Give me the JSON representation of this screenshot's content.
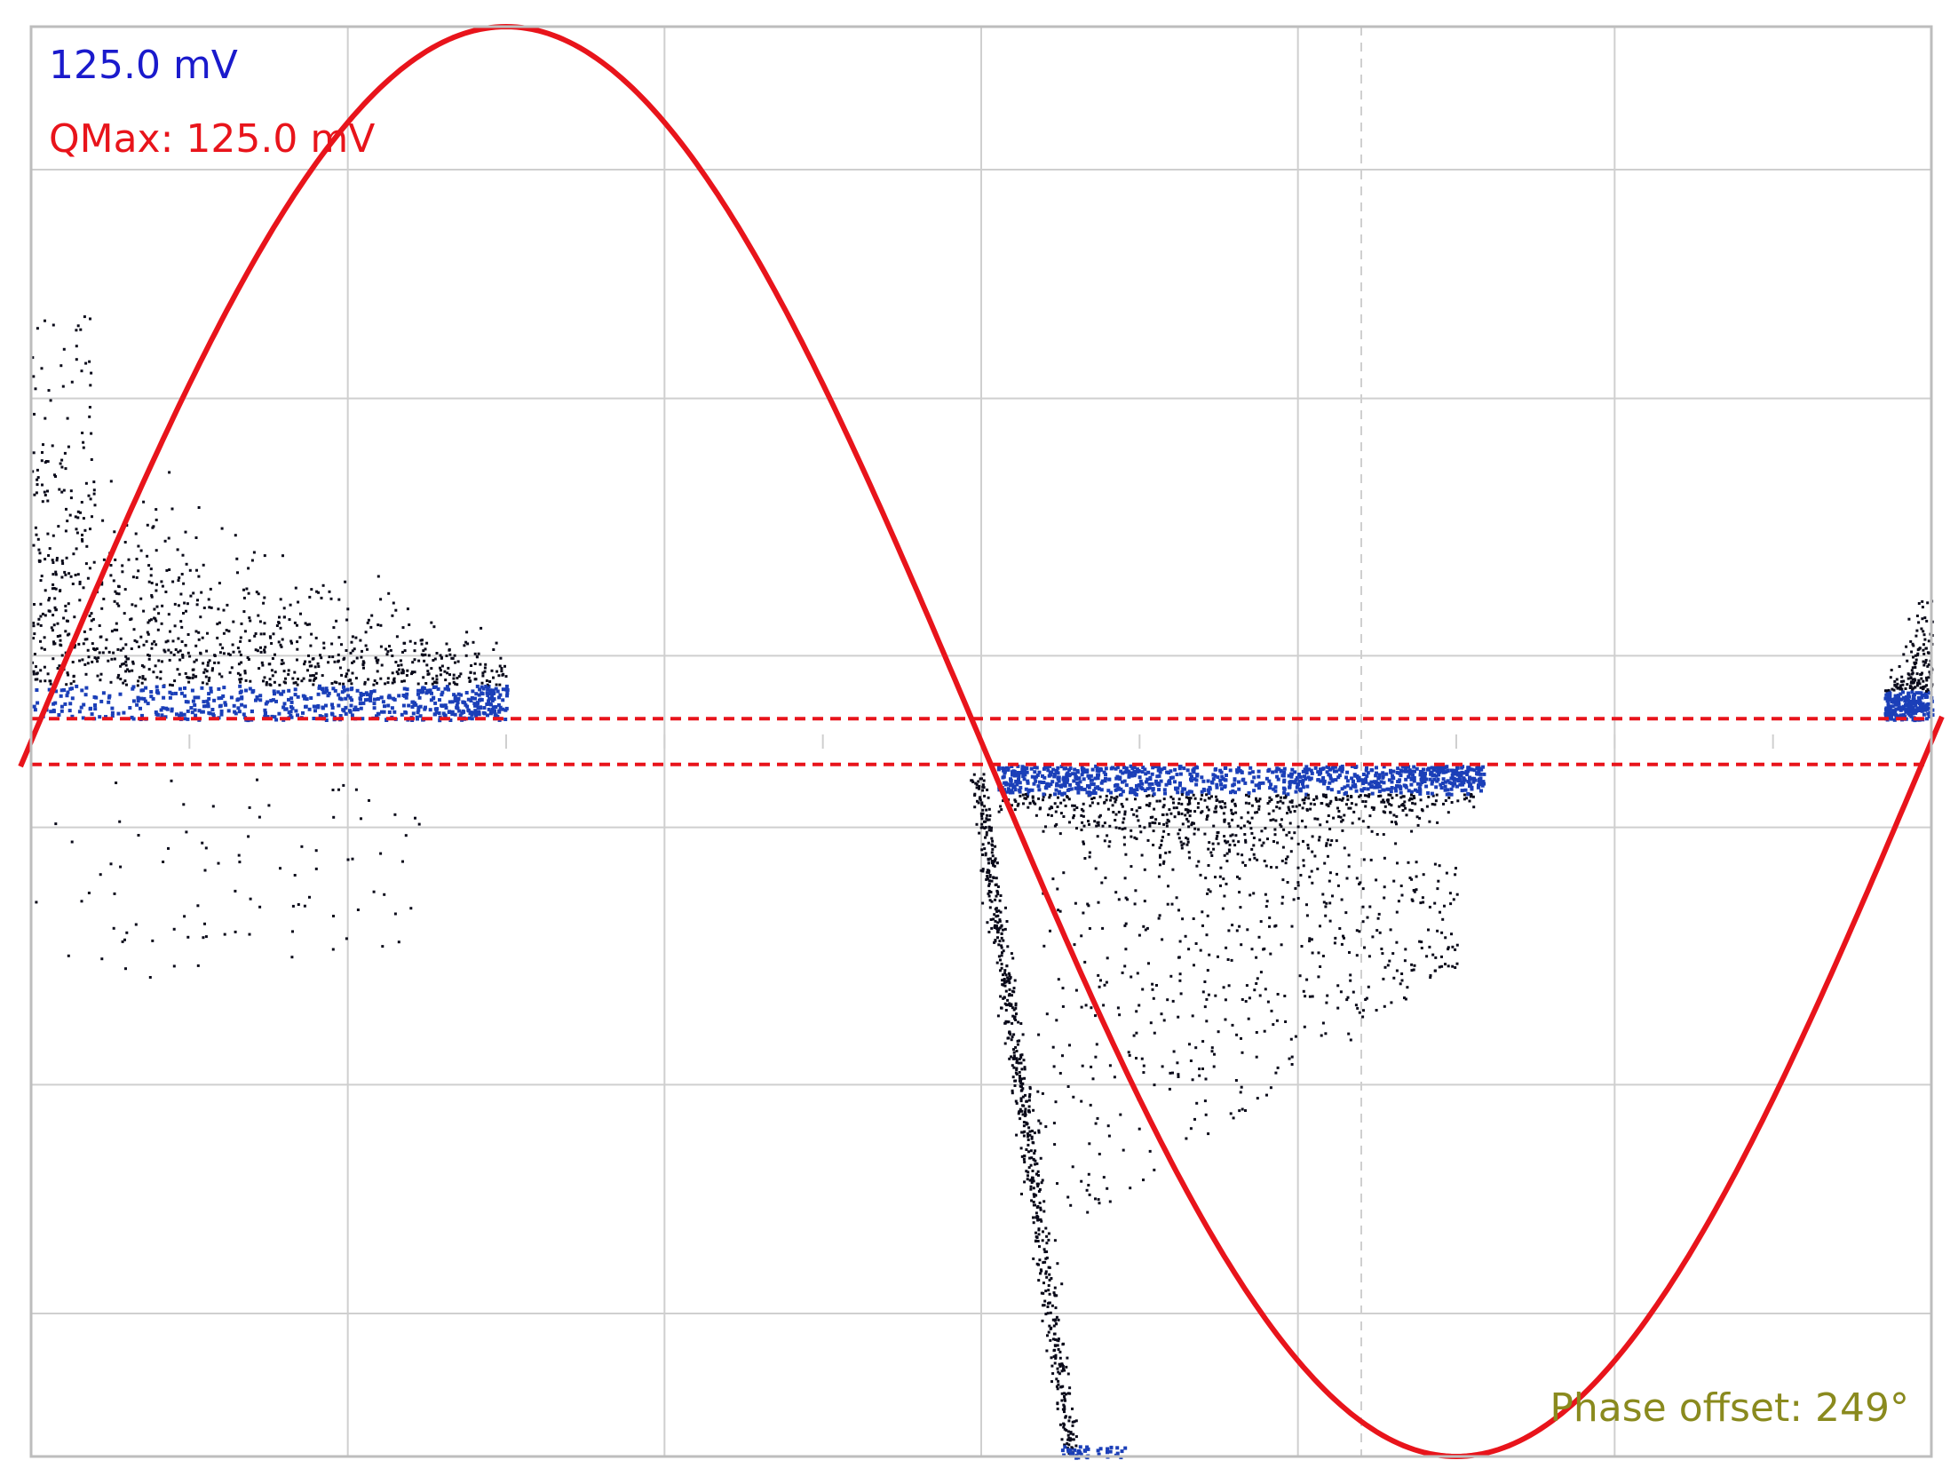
{
  "labels": {
    "range": "125.0 mV",
    "qmax": "QMax: 125.0 mV",
    "phase_offset": "Phase offset: 249°"
  },
  "colors": {
    "background": "#ffffff",
    "grid": "#cfcfcf",
    "frame": "#bdbdbd",
    "sine": "#e8141b",
    "threshold": "#e8141b",
    "range_label": "#1a1acc",
    "qmax_label": "#e8141b",
    "phase_label": "#8a8a1e",
    "dots_dense": "#1b3fb8",
    "dots_sparse": "#0a0a1a"
  },
  "chart_data": {
    "type": "scatter",
    "title": "",
    "xlabel": "",
    "ylabel": "",
    "xlim": [
      0,
      360
    ],
    "ylim": [
      -125,
      125
    ],
    "grid": true,
    "legend": "none",
    "reference_sine": {
      "amplitude": 125,
      "zero_crossing_rising_deg": 0,
      "peak_deg": 90,
      "trough_deg": 270
    },
    "threshold_lines": [
      4,
      -4
    ],
    "clusters": [
      {
        "x_range": [
          0,
          90
        ],
        "y_range": [
          4,
          55
        ],
        "density": "high",
        "note": "positive half-cycle clusters near 0-90 deg"
      },
      {
        "x_range": [
          180,
          275
        ],
        "y_range": [
          -4,
          -45
        ],
        "density": "high"
      },
      {
        "x_range": [
          178,
          200
        ],
        "y_range": [
          -4,
          -125
        ],
        "density": "medium"
      },
      {
        "x_range": [
          350,
          360
        ],
        "y_range": [
          4,
          40
        ],
        "density": "high"
      }
    ]
  }
}
